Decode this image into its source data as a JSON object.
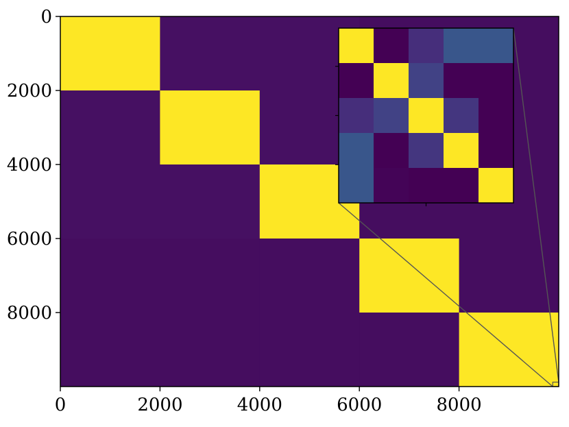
{
  "chart_data": {
    "type": "heatmap",
    "title": "",
    "xlabel": "",
    "ylabel": "",
    "xlim": [
      0,
      10000
    ],
    "ylim": [
      10000,
      0
    ],
    "x_ticks": [
      0,
      2000,
      4000,
      6000,
      8000
    ],
    "y_ticks": [
      0,
      2000,
      4000,
      6000,
      8000
    ],
    "x_tick_labels": [
      "0",
      "2000",
      "4000",
      "6000",
      "8000"
    ],
    "y_tick_labels": [
      "0",
      "2000",
      "4000",
      "6000",
      "8000"
    ],
    "colormap": "viridis",
    "value_range": [
      0,
      1
    ],
    "grid": false,
    "block_bounds": [
      0,
      2000,
      4000,
      6000,
      8000,
      10000
    ],
    "blocks": [
      [
        1.0,
        0.05,
        0.05,
        0.04,
        0.04
      ],
      [
        0.05,
        1.0,
        0.05,
        0.04,
        0.04
      ],
      [
        0.05,
        0.05,
        1.0,
        0.04,
        0.04
      ],
      [
        0.04,
        0.04,
        0.04,
        1.0,
        0.04
      ],
      [
        0.04,
        0.04,
        0.04,
        0.04,
        1.0
      ]
    ],
    "inset": {
      "region_x": [
        9880,
        10000
      ],
      "region_y": [
        10000,
        9880
      ],
      "blocks": [
        [
          1.0,
          0.0,
          0.15,
          0.3,
          0.3
        ],
        [
          0.0,
          1.0,
          0.22,
          0.0,
          0.0
        ],
        [
          0.15,
          0.22,
          1.0,
          0.18,
          0.0
        ],
        [
          0.3,
          0.0,
          0.18,
          1.0,
          0.0
        ],
        [
          0.3,
          0.01,
          0.0,
          0.0,
          1.0
        ]
      ]
    }
  },
  "colors": {
    "low": "#440154",
    "high": "#fde725",
    "connector": "#555555",
    "frame": "#000000"
  }
}
